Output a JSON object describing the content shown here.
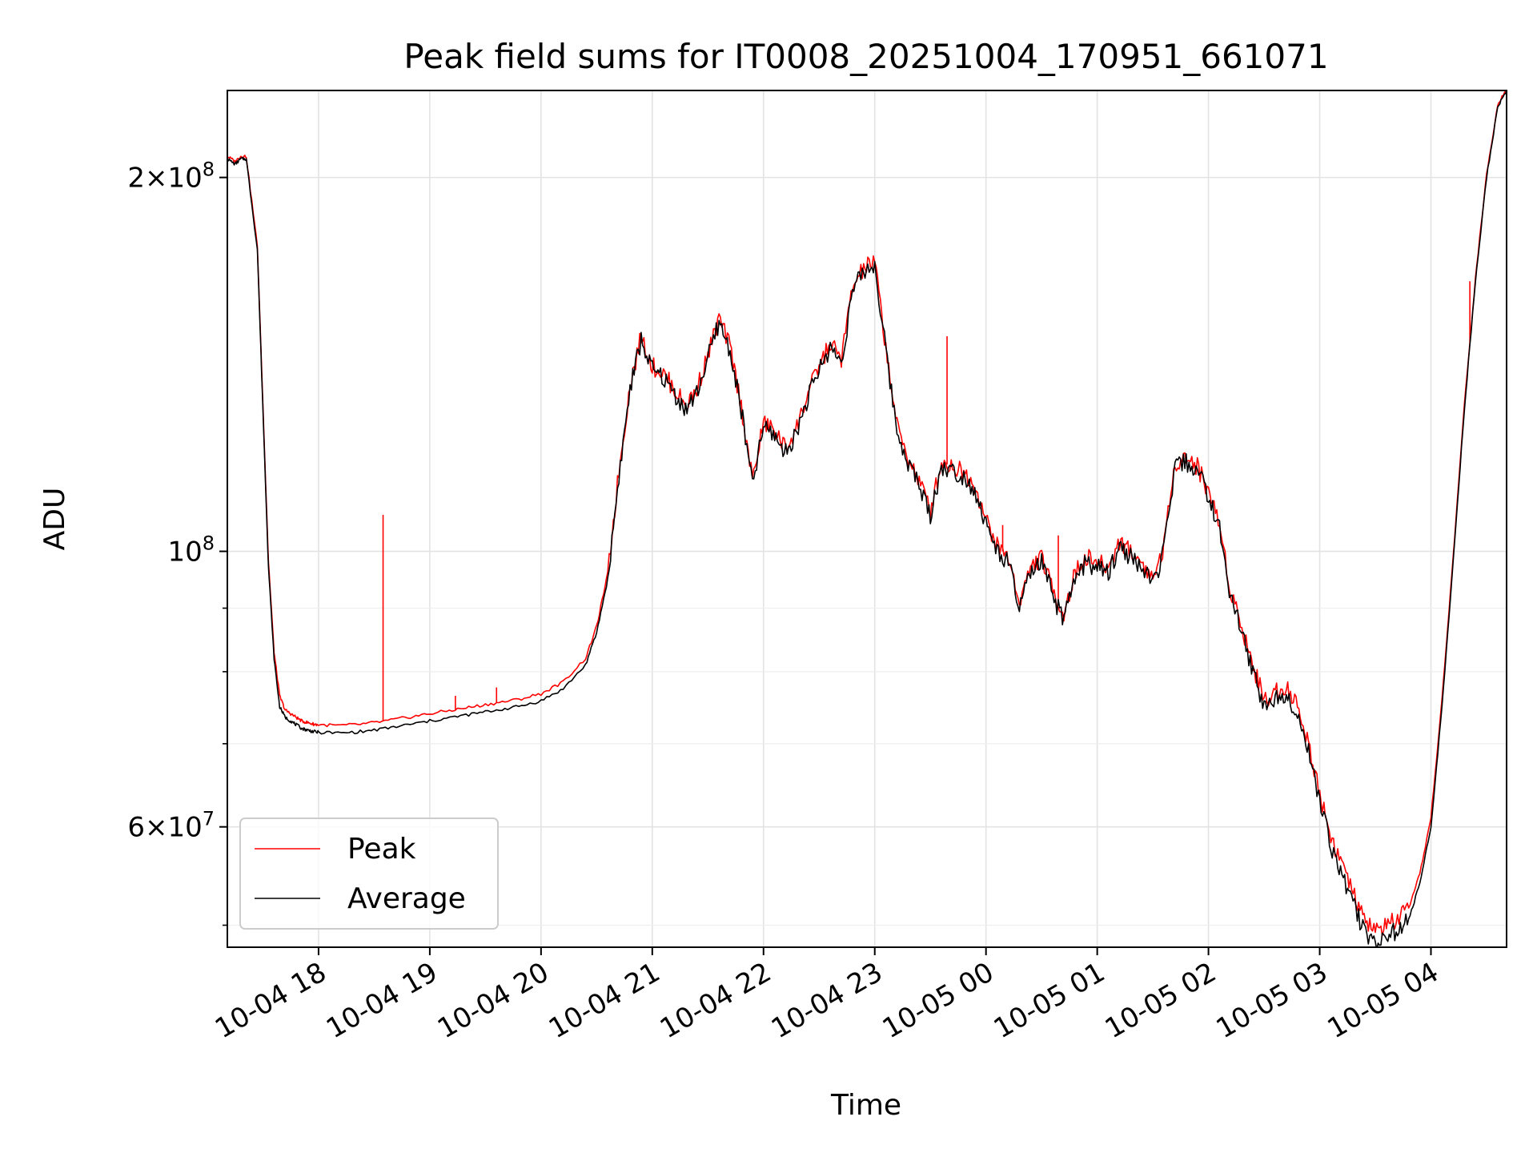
{
  "chart_data": {
    "type": "line",
    "title": "Peak field sums for IT0008_20251004_170951_661071",
    "xlabel": "Time",
    "ylabel": "ADU",
    "y_scale": "log",
    "ylim": [
      48000000,
      235000000
    ],
    "xlim_hours": [
      -0.82,
      10.68
    ],
    "x_unit": "hours since 10-04 18:00",
    "x_ticks": [
      {
        "hour": 0,
        "label": "10-04 18"
      },
      {
        "hour": 1,
        "label": "10-04 19"
      },
      {
        "hour": 2,
        "label": "10-04 20"
      },
      {
        "hour": 3,
        "label": "10-04 21"
      },
      {
        "hour": 4,
        "label": "10-04 22"
      },
      {
        "hour": 5,
        "label": "10-04 23"
      },
      {
        "hour": 6,
        "label": "10-05 00"
      },
      {
        "hour": 7,
        "label": "10-05 01"
      },
      {
        "hour": 8,
        "label": "10-05 02"
      },
      {
        "hour": 9,
        "label": "10-05 03"
      },
      {
        "hour": 10,
        "label": "10-05 04"
      }
    ],
    "y_ticks": [
      {
        "value": 60000000,
        "mantissa": "6",
        "exponent": "7"
      },
      {
        "value": 100000000,
        "mantissa": "",
        "exponent": "8"
      },
      {
        "value": 200000000,
        "mantissa": "2",
        "exponent": "8"
      }
    ],
    "y_minor_ticks": [
      50000000,
      70000000,
      80000000,
      90000000
    ],
    "grid": true,
    "legend_position": "bottom-left",
    "series": [
      {
        "name": "Average",
        "color": "#000000",
        "x": [
          -0.82,
          -0.75,
          -0.7,
          -0.65,
          -0.55,
          -0.5,
          -0.45,
          -0.4,
          -0.35,
          -0.3,
          -0.25,
          -0.2,
          -0.15,
          -0.1,
          -0.05,
          0.0,
          0.2,
          0.4,
          0.6,
          0.8,
          1.0,
          1.2,
          1.4,
          1.6,
          1.8,
          2.0,
          2.2,
          2.4,
          2.5,
          2.6,
          2.7,
          2.8,
          2.9,
          3.0,
          3.1,
          3.2,
          3.3,
          3.4,
          3.5,
          3.6,
          3.7,
          3.8,
          3.9,
          4.0,
          4.1,
          4.2,
          4.3,
          4.4,
          4.5,
          4.6,
          4.7,
          4.8,
          4.9,
          5.0,
          5.1,
          5.2,
          5.3,
          5.4,
          5.5,
          5.6,
          5.7,
          5.8,
          5.9,
          6.0,
          6.1,
          6.2,
          6.3,
          6.4,
          6.5,
          6.6,
          6.7,
          6.8,
          6.9,
          7.0,
          7.1,
          7.2,
          7.3,
          7.4,
          7.5,
          7.6,
          7.7,
          7.8,
          7.9,
          8.0,
          8.1,
          8.2,
          8.3,
          8.4,
          8.5,
          8.6,
          8.7,
          8.8,
          8.9,
          9.0,
          9.1,
          9.2,
          9.3,
          9.4,
          9.5,
          9.6,
          9.7,
          9.8,
          9.9,
          10.0,
          10.1,
          10.2,
          10.3,
          10.4,
          10.5,
          10.6,
          10.68
        ],
        "values": [
          207000000,
          205000000,
          207000000,
          207000000,
          175000000,
          130000000,
          97000000,
          82000000,
          75000000,
          73500000,
          73000000,
          72500000,
          72000000,
          71800000,
          71600000,
          71500000,
          71400000,
          71600000,
          72000000,
          72500000,
          73000000,
          73500000,
          74000000,
          74500000,
          75000000,
          75800000,
          77500000,
          81000000,
          86000000,
          95000000,
          115000000,
          135000000,
          148000000,
          140000000,
          138000000,
          134000000,
          130000000,
          134000000,
          143000000,
          153000000,
          145000000,
          130000000,
          113000000,
          126000000,
          124000000,
          120000000,
          125000000,
          133000000,
          140000000,
          146000000,
          142000000,
          162000000,
          168000000,
          170000000,
          145000000,
          125000000,
          118000000,
          113000000,
          107000000,
          117000000,
          116000000,
          115000000,
          112000000,
          105000000,
          100000000,
          98000000,
          90000000,
          96000000,
          98000000,
          92000000,
          88000000,
          95000000,
          98000000,
          97000000,
          96000000,
          101000000,
          99000000,
          97000000,
          94000000,
          100000000,
          117000000,
          118000000,
          116000000,
          111000000,
          104000000,
          92000000,
          86000000,
          80000000,
          75000000,
          76000000,
          77000000,
          74000000,
          69000000,
          63000000,
          58000000,
          55000000,
          52000000,
          49500000,
          48500000,
          49000000,
          49500000,
          50500000,
          54000000,
          60000000,
          75000000,
          98000000,
          130000000,
          165000000,
          200000000,
          228000000,
          235000000
        ]
      },
      {
        "name": "Peak",
        "color": "#ff0000",
        "x": [
          -0.82,
          -0.75,
          -0.7,
          -0.65,
          -0.55,
          -0.5,
          -0.45,
          -0.4,
          -0.35,
          -0.3,
          -0.25,
          -0.2,
          -0.15,
          -0.1,
          -0.05,
          0.0,
          0.2,
          0.4,
          0.6,
          0.8,
          1.0,
          1.2,
          1.4,
          1.6,
          1.8,
          2.0,
          2.2,
          2.4,
          2.5,
          2.6,
          2.7,
          2.8,
          2.9,
          3.0,
          3.1,
          3.2,
          3.3,
          3.4,
          3.5,
          3.6,
          3.7,
          3.8,
          3.9,
          4.0,
          4.1,
          4.2,
          4.3,
          4.4,
          4.5,
          4.6,
          4.7,
          4.8,
          4.9,
          5.0,
          5.1,
          5.2,
          5.3,
          5.4,
          5.5,
          5.6,
          5.7,
          5.8,
          5.9,
          6.0,
          6.1,
          6.2,
          6.3,
          6.4,
          6.5,
          6.6,
          6.7,
          6.8,
          6.9,
          7.0,
          7.1,
          7.2,
          7.3,
          7.4,
          7.5,
          7.6,
          7.7,
          7.8,
          7.9,
          8.0,
          8.1,
          8.2,
          8.3,
          8.4,
          8.5,
          8.6,
          8.7,
          8.8,
          8.9,
          9.0,
          9.1,
          9.2,
          9.3,
          9.4,
          9.5,
          9.6,
          9.7,
          9.8,
          9.9,
          10.0,
          10.1,
          10.2,
          10.3,
          10.4,
          10.5,
          10.6,
          10.68
        ],
        "values": [
          208000000,
          206000000,
          208000000,
          208000000,
          176000000,
          131000000,
          98000000,
          83000000,
          76500000,
          74500000,
          74000000,
          73500000,
          73000000,
          72800000,
          72600000,
          72500000,
          72400000,
          72600000,
          73000000,
          73500000,
          74000000,
          74500000,
          75000000,
          75500000,
          76000000,
          76800000,
          78500000,
          82000000,
          87000000,
          96000000,
          116000000,
          136000000,
          149000000,
          141000000,
          139000000,
          135000000,
          131000000,
          135000000,
          144000000,
          154000000,
          146000000,
          131000000,
          114000000,
          127000000,
          125000000,
          121000000,
          126000000,
          134000000,
          141000000,
          147000000,
          143000000,
          163000000,
          169000000,
          171000000,
          146000000,
          126000000,
          119000000,
          114000000,
          108000000,
          118000000,
          117000000,
          116000000,
          113000000,
          106000000,
          101000000,
          99000000,
          91000000,
          97000000,
          99000000,
          93000000,
          89000000,
          96000000,
          99000000,
          98000000,
          97000000,
          102000000,
          100000000,
          98000000,
          95000000,
          101000000,
          118000000,
          119000000,
          117000000,
          112000000,
          105000000,
          93000000,
          87000000,
          81000000,
          76000000,
          77000000,
          78000000,
          75000000,
          70000000,
          64000000,
          59000000,
          56000000,
          53000000,
          50500000,
          49500000,
          50000000,
          50500000,
          51500000,
          55000000,
          61000000,
          76000000,
          99000000,
          131000000,
          166000000,
          201000000,
          229000000,
          236000000
        ]
      }
    ],
    "spikes": [
      {
        "series": "Peak",
        "hour": 0.58,
        "value": 107000000
      },
      {
        "series": "Peak",
        "hour": 1.23,
        "value": 76500000
      },
      {
        "series": "Peak",
        "hour": 1.6,
        "value": 77700000
      },
      {
        "series": "Peak",
        "hour": 6.15,
        "value": 105000000
      },
      {
        "series": "Peak",
        "hour": 6.65,
        "value": 103000000
      },
      {
        "series": "Peak",
        "hour": 5.65,
        "value": 149000000
      },
      {
        "series": "Peak",
        "hour": 10.35,
        "value": 165000000
      }
    ],
    "legend": [
      {
        "label": "Peak",
        "color": "#ff0000"
      },
      {
        "label": "Average",
        "color": "#000000"
      }
    ]
  }
}
